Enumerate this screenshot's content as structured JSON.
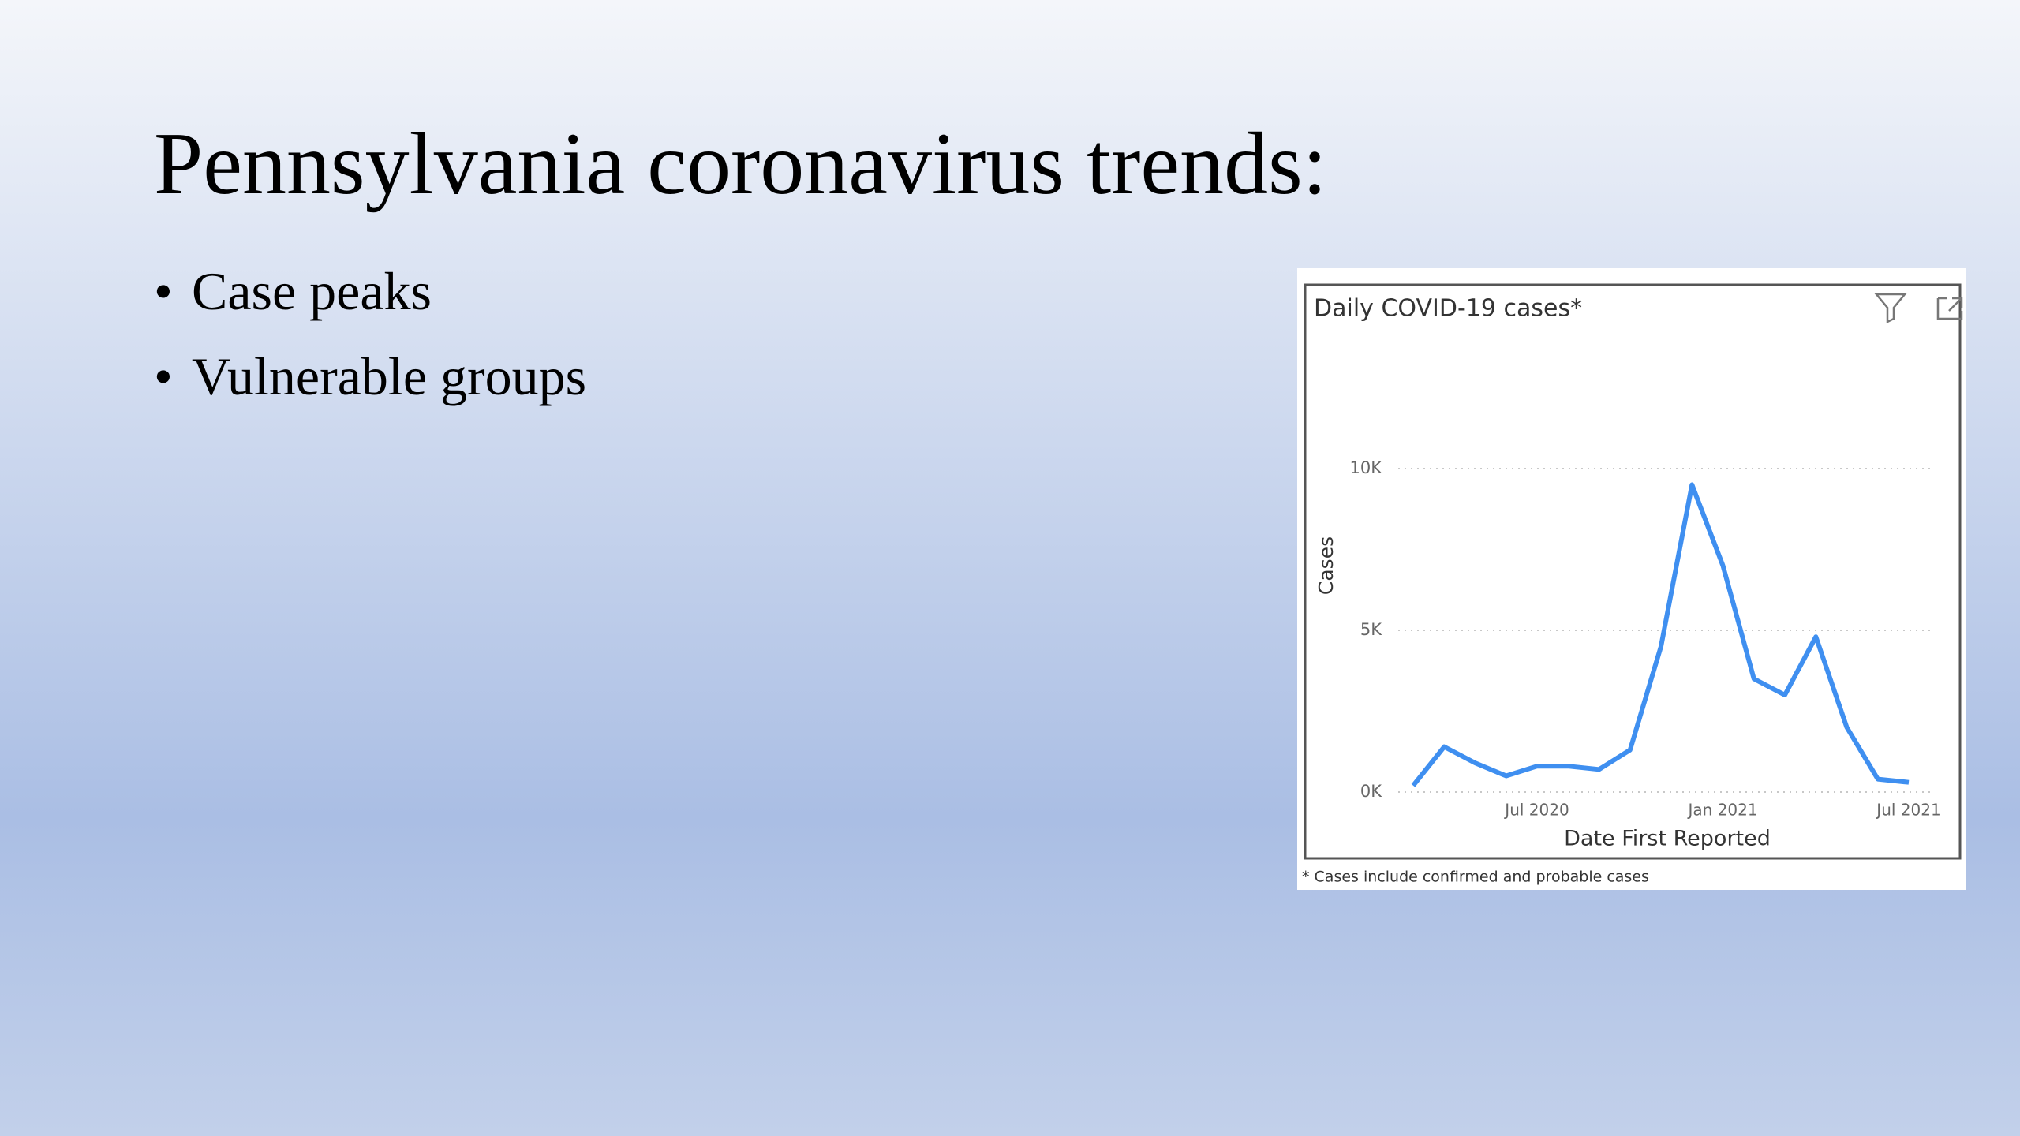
{
  "slide": {
    "title": "Pennsylvania coronavirus trends:",
    "bullets": [
      "Case peaks",
      "Vulnerable groups"
    ]
  },
  "chart_data": {
    "type": "line",
    "title": "Daily COVID-19 cases*",
    "xlabel": "Date First Reported",
    "ylabel": "Cases",
    "note": "* Cases include confirmed and probable cases",
    "x": [
      "2020-03",
      "2020-04",
      "2020-05",
      "2020-06",
      "2020-07",
      "2020-08",
      "2020-09",
      "2020-10",
      "2020-11",
      "2020-12",
      "2021-01",
      "2021-02",
      "2021-03",
      "2021-04",
      "2021-05",
      "2021-06",
      "2021-07"
    ],
    "series": [
      {
        "name": "Cases",
        "color": "#3f8ff0",
        "values": [
          200,
          1400,
          900,
          500,
          800,
          800,
          700,
          1300,
          4500,
          9500,
          7000,
          3500,
          3000,
          4800,
          2000,
          400,
          300
        ]
      }
    ],
    "xlim": [
      "2020-03",
      "2021-07"
    ],
    "xticks": [
      {
        "value": "2020-07",
        "label": "Jul 2020"
      },
      {
        "value": "2021-01",
        "label": "Jan 2021"
      },
      {
        "value": "2021-07",
        "label": "Jul 2021"
      }
    ],
    "ylim": [
      0,
      14000
    ],
    "yticks": [
      {
        "value": 0,
        "label": "0K"
      },
      {
        "value": 5000,
        "label": "5K"
      },
      {
        "value": 10000,
        "label": "10K"
      }
    ],
    "grid": true
  }
}
